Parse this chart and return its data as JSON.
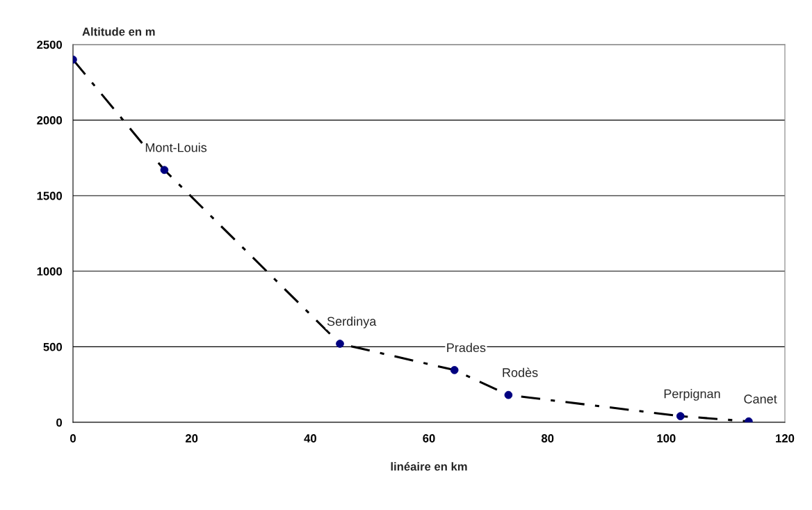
{
  "chart_data": {
    "type": "line",
    "ylabel": "Altitude en m",
    "xlabel": "linéaire en km",
    "x": [
      0,
      15.4,
      45.0,
      64.3,
      73.4,
      102.4,
      113.9
    ],
    "series": [
      {
        "color": "#000080",
        "values": [
          2400,
          1670,
          520,
          346,
          181,
          41,
          6
        ]
      }
    ],
    "annotations": [
      {
        "text": "Mont-Louis",
        "x": 15.4,
        "y": 1670
      },
      {
        "text": "Serdinya",
        "x": 45.0,
        "y": 520
      },
      {
        "text": "Prades",
        "x": 64.3,
        "y": 346
      },
      {
        "text": "Rodès",
        "x": 73.4,
        "y": 181
      },
      {
        "text": "Perpignan",
        "x": 102.4,
        "y": 41
      },
      {
        "text": "Canet",
        "x": 113.9,
        "y": 6
      }
    ],
    "xlim": [
      0,
      120
    ],
    "xticks": [
      0,
      20,
      40,
      60,
      80,
      100,
      120
    ],
    "ylim": [
      0,
      2500
    ],
    "yticks": [
      0,
      500,
      1000,
      1500,
      2000,
      2500
    ],
    "grid": "y",
    "legend": false,
    "marker": "circle",
    "line_style": "dashdot"
  }
}
